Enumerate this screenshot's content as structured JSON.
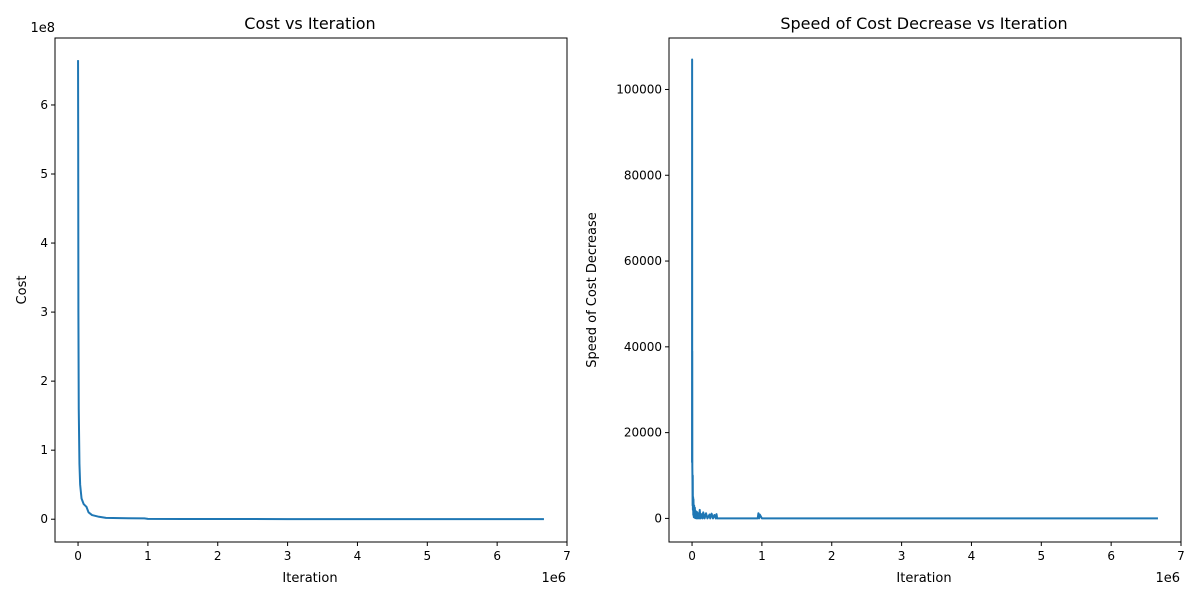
{
  "colors": {
    "line": "#1f77b4",
    "axes": "#000000",
    "background": "#ffffff"
  },
  "chart_data": [
    {
      "type": "line",
      "title": "Cost vs Iteration",
      "xlabel": "Iteration",
      "ylabel": "Cost",
      "x_offset_label": "1e6",
      "y_offset_label": "1e8",
      "xlim": [
        -330000,
        7000000
      ],
      "ylim": [
        -33000000,
        697000000
      ],
      "x_ticks": [
        0,
        1000000,
        2000000,
        3000000,
        4000000,
        5000000,
        6000000,
        7000000
      ],
      "x_tick_labels": [
        "0",
        "1",
        "2",
        "3",
        "4",
        "5",
        "6",
        "7"
      ],
      "y_ticks": [
        0,
        100000000,
        200000000,
        300000000,
        400000000,
        500000000,
        600000000
      ],
      "y_tick_labels": [
        "0",
        "1",
        "2",
        "3",
        "4",
        "5",
        "6"
      ],
      "grid": false,
      "series": [
        {
          "x": [
            0,
            2000,
            5000,
            10000,
            20000,
            30000,
            50000,
            80000,
            120000,
            150000,
            200000,
            300000,
            400000,
            600000,
            950000,
            1000000,
            1500000,
            3000000,
            6670000
          ],
          "y": [
            665000000,
            560000000,
            300000000,
            160000000,
            80000000,
            50000000,
            30000000,
            22000000,
            18000000,
            10000000,
            6000000,
            3500000,
            2000000,
            1500000,
            1200000,
            500000,
            300000,
            200000,
            100000
          ]
        }
      ]
    },
    {
      "type": "line",
      "title": "Speed of Cost Decrease vs Iteration",
      "xlabel": "Iteration",
      "ylabel": "Speed of Cost Decrease",
      "x_offset_label": "1e6",
      "xlim": [
        -330000,
        7000000
      ],
      "ylim": [
        -5500000,
        112000
      ],
      "ylim_actual": [
        -5500,
        112000
      ],
      "x_ticks": [
        0,
        1000000,
        2000000,
        3000000,
        4000000,
        5000000,
        6000000,
        7000000
      ],
      "x_tick_labels": [
        "0",
        "1",
        "2",
        "3",
        "4",
        "5",
        "6",
        "7"
      ],
      "y_ticks": [
        0,
        20000,
        40000,
        60000,
        80000,
        100000
      ],
      "y_tick_labels": [
        "0",
        "20000",
        "40000",
        "60000",
        "80000",
        "100000"
      ],
      "grid": false,
      "series": [
        {
          "x": [
            0,
            1000,
            2000,
            3000,
            4000,
            6000,
            8000,
            10000,
            12000,
            15000,
            18000,
            20000,
            25000,
            30000,
            35000,
            40000,
            45000,
            50000,
            60000,
            70000,
            80000,
            90000,
            100000,
            110000,
            120000,
            140000,
            150000,
            160000,
            180000,
            200000,
            220000,
            250000,
            260000,
            280000,
            300000,
            320000,
            340000,
            350000,
            360000,
            400000,
            500000,
            940000,
            950000,
            960000,
            970000,
            1000000,
            2000000,
            4000000,
            6670000
          ],
          "y": [
            13000,
            107000,
            27000,
            39000,
            12000,
            9000,
            3000,
            10000,
            2000,
            5000,
            800,
            4500,
            300,
            3000,
            200,
            2500,
            100,
            1800,
            0,
            1500,
            0,
            1200,
            0,
            2000,
            0,
            1000,
            0,
            1400,
            0,
            1200,
            0,
            900,
            0,
            1100,
            0,
            800,
            0,
            1000,
            0,
            0,
            0,
            0,
            1200,
            0,
            900,
            0,
            0,
            0,
            0
          ]
        }
      ]
    }
  ]
}
